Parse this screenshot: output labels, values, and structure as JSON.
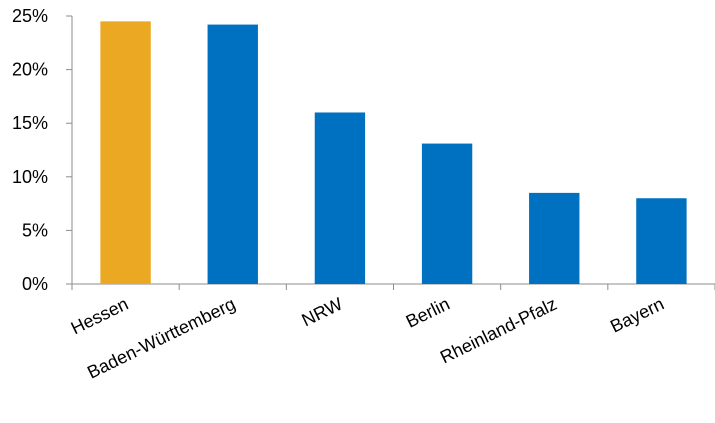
{
  "chart_data": {
    "type": "bar",
    "title": "",
    "xlabel": "",
    "ylabel": "",
    "categories": [
      "Hessen",
      "Baden-Württemberg",
      "NRW",
      "Berlin",
      "Rheinland-Pfalz",
      "Bayern"
    ],
    "values": [
      24.5,
      24.2,
      16.0,
      13.1,
      8.5,
      8.0
    ],
    "ylim": [
      0,
      25
    ],
    "yticks": [
      0,
      5,
      10,
      15,
      20,
      25
    ],
    "ytick_labels": [
      "0%",
      "5%",
      "10%",
      "15%",
      "20%",
      "25%"
    ],
    "grid": false,
    "legend": "none",
    "colors": {
      "highlight": "#EBA823",
      "default": "#0070C0"
    },
    "highlight_category": "Hessen"
  }
}
